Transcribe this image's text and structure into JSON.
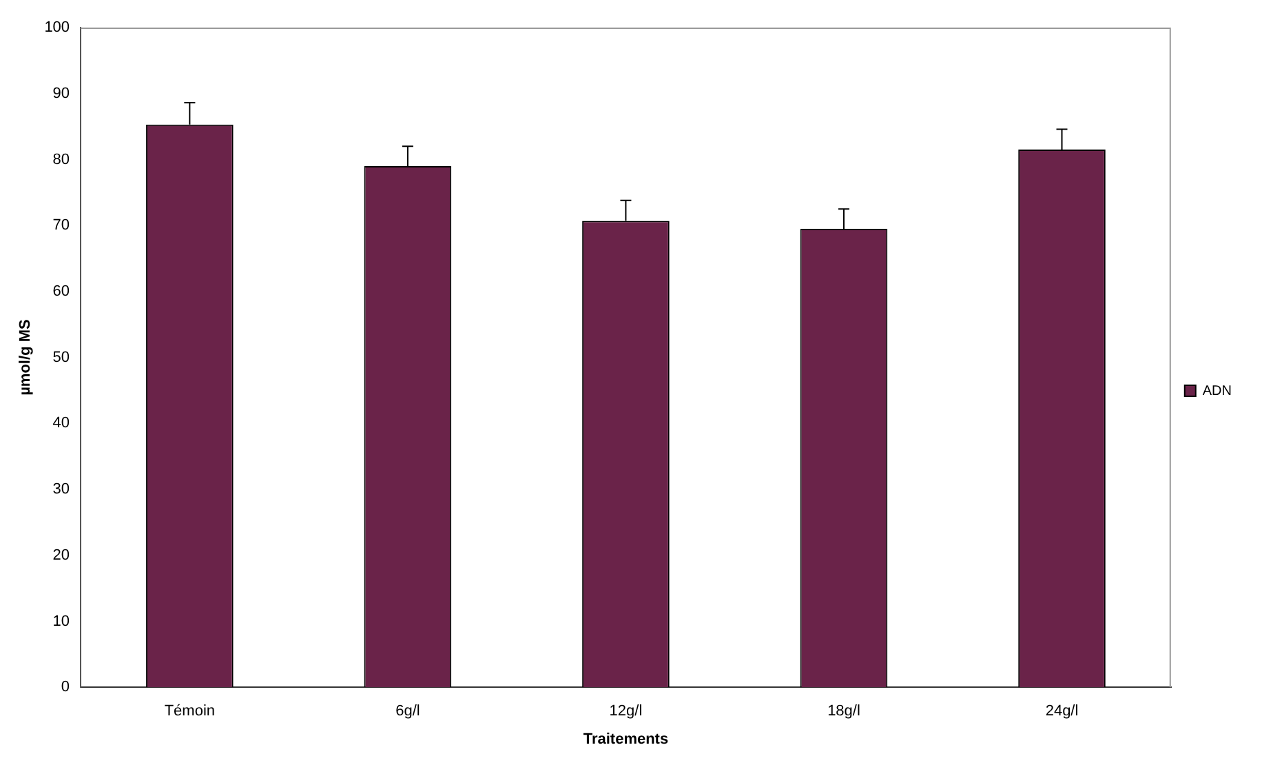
{
  "chart_data": {
    "type": "bar",
    "xlabel": "Traitements",
    "ylabel": "µmol/g MS",
    "categories": [
      "Témoin",
      "6g/l",
      "12g/l",
      "18g/l",
      "24g/l"
    ],
    "series": [
      {
        "name": "ADN",
        "color": "#6a2349",
        "values": [
          85.3,
          79.0,
          70.7,
          69.5,
          81.5
        ],
        "errors": [
          3.3,
          3.0,
          3.1,
          3.0,
          3.1
        ]
      }
    ],
    "ylim": [
      0,
      100
    ],
    "yticks": [
      0,
      10,
      20,
      30,
      40,
      50,
      60,
      70,
      80,
      90,
      100
    ],
    "grid": false,
    "legend": "right"
  }
}
